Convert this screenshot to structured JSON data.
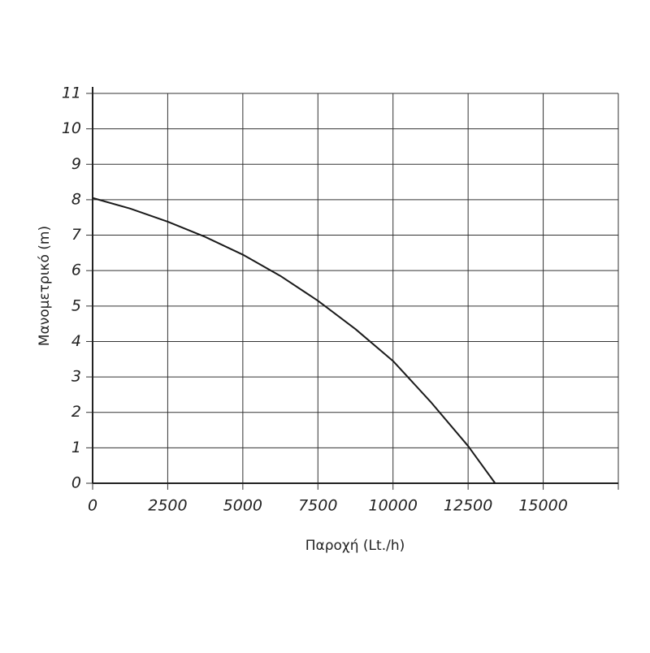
{
  "chart_data": {
    "type": "line",
    "x_label": "Παροχή (Lt./h)",
    "y_label": "Μανομετρικό  (m)",
    "series": [
      {
        "color": "#1a1a1a",
        "x": [
          0,
          1250,
          2500,
          3750,
          5000,
          6250,
          7500,
          8750,
          10000,
          11250,
          12500,
          13400
        ],
        "values": [
          8.05,
          7.75,
          7.38,
          6.95,
          6.45,
          5.85,
          5.15,
          4.35,
          3.45,
          2.3,
          1.05,
          0
        ]
      }
    ],
    "xlim": [
      0,
      17500
    ],
    "ylim": [
      0,
      11
    ],
    "xticks": [
      0,
      2500,
      5000,
      7500,
      10000,
      12500,
      15000
    ],
    "yticks": [
      0,
      1,
      2,
      3,
      4,
      5,
      6,
      7,
      8,
      9,
      10,
      11
    ],
    "grid": true
  }
}
